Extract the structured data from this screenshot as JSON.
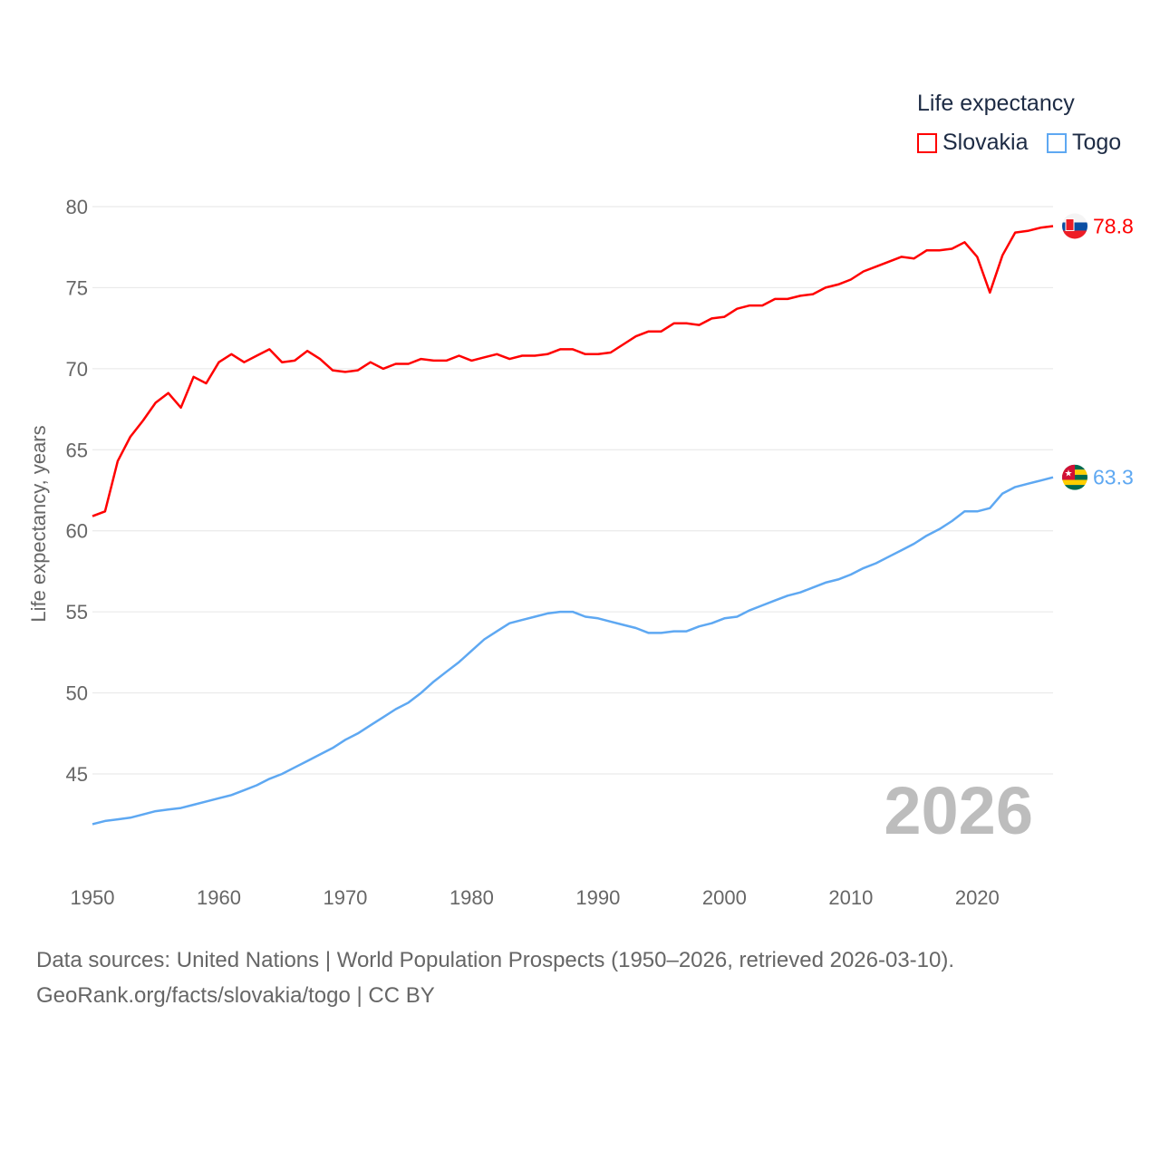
{
  "legend": {
    "title": "Life expectancy",
    "items": [
      {
        "label": "Slovakia",
        "color": "#ff0000"
      },
      {
        "label": "Togo",
        "color": "#5ea8f2"
      }
    ]
  },
  "year_label": "2026",
  "footer": {
    "line1": "Data sources: United Nations | World Population Prospects (1950–2026, retrieved 2026-03-10).",
    "line2": "GeoRank.org/facts/slovakia/togo | CC BY"
  },
  "chart_data": {
    "type": "line",
    "title": "Life expectancy",
    "xlabel": "",
    "ylabel": "Life expectancy, years",
    "xlim": [
      1950,
      2026
    ],
    "ylim": [
      40.2,
      81.3
    ],
    "grid": true,
    "legend_position": "top-right",
    "xticks": [
      1950,
      1960,
      1970,
      1980,
      1990,
      2000,
      2010,
      2020
    ],
    "yticks": [
      45,
      50,
      55,
      60,
      65,
      70,
      75,
      80
    ],
    "x_start": 1950,
    "series": [
      {
        "name": "Slovakia",
        "color": "#ff0000",
        "end_label": "78.8",
        "flag": "slovakia-flag",
        "values": [
          60.9,
          61.2,
          64.3,
          65.8,
          66.8,
          67.9,
          68.5,
          67.6,
          69.5,
          69.1,
          70.4,
          70.9,
          70.4,
          70.8,
          71.2,
          70.4,
          70.5,
          71.1,
          70.6,
          69.9,
          69.8,
          69.9,
          70.4,
          70.0,
          70.3,
          70.3,
          70.6,
          70.5,
          70.5,
          70.8,
          70.5,
          70.7,
          70.9,
          70.6,
          70.8,
          70.8,
          70.9,
          71.2,
          71.2,
          70.9,
          70.9,
          71.0,
          71.5,
          72.0,
          72.3,
          72.3,
          72.8,
          72.8,
          72.7,
          73.1,
          73.2,
          73.7,
          73.9,
          73.9,
          74.3,
          74.3,
          74.5,
          74.6,
          75.0,
          75.2,
          75.5,
          76.0,
          76.3,
          76.6,
          76.9,
          76.8,
          77.3,
          77.3,
          77.4,
          77.8,
          76.9,
          74.7,
          77.0,
          78.4,
          78.5,
          78.7,
          78.8
        ]
      },
      {
        "name": "Togo",
        "color": "#5ea8f2",
        "end_label": "63.3",
        "flag": "togo-flag",
        "values": [
          41.9,
          42.1,
          42.2,
          42.3,
          42.5,
          42.7,
          42.8,
          42.9,
          43.1,
          43.3,
          43.5,
          43.7,
          44.0,
          44.3,
          44.7,
          45.0,
          45.4,
          45.8,
          46.2,
          46.6,
          47.1,
          47.5,
          48.0,
          48.5,
          49.0,
          49.4,
          50.0,
          50.7,
          51.3,
          51.9,
          52.6,
          53.3,
          53.8,
          54.3,
          54.5,
          54.7,
          54.9,
          55.0,
          55.0,
          54.7,
          54.6,
          54.4,
          54.2,
          54.0,
          53.7,
          53.7,
          53.8,
          53.8,
          54.1,
          54.3,
          54.6,
          54.7,
          55.1,
          55.4,
          55.7,
          56.0,
          56.2,
          56.5,
          56.8,
          57.0,
          57.3,
          57.7,
          58.0,
          58.4,
          58.8,
          59.2,
          59.7,
          60.1,
          60.6,
          61.2,
          61.2,
          61.4,
          62.3,
          62.7,
          62.9,
          63.1,
          63.3
        ]
      }
    ]
  }
}
